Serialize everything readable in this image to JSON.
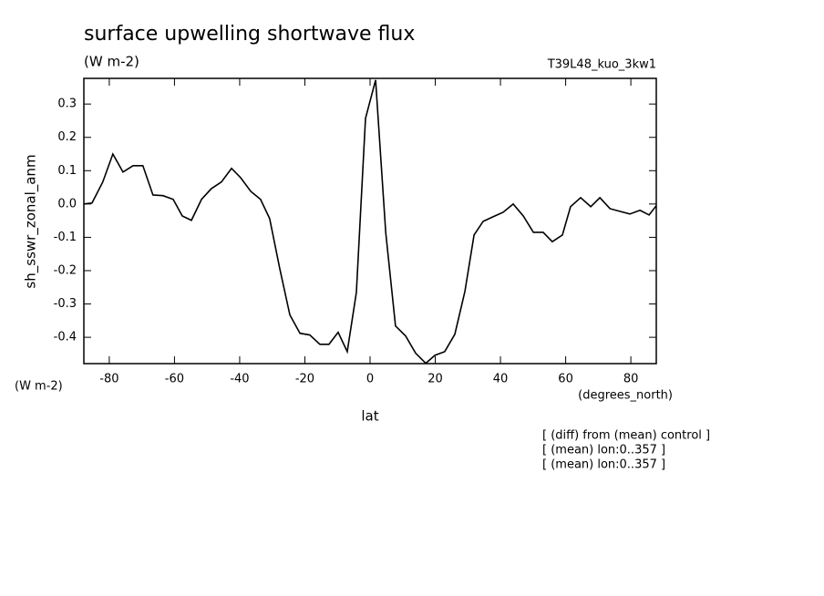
{
  "chart_data": {
    "type": "line",
    "title": "surface upwelling shortwave flux",
    "subtitle": "(W m-2)",
    "run_label": "T39L48_kuo_3kw1",
    "y_label": "sh_sswr_zonal_anm",
    "y_units": "(W m-2)",
    "x_units": "(degrees_north)",
    "x_label": "lat",
    "notes": [
      "[ (diff) from (mean) control ]",
      "[ (mean) lon:0..357 ]",
      "[ (mean) lon:0..357 ]"
    ],
    "color": "#000000",
    "x": [
      -87.8,
      -85.3,
      -82.0,
      -78.9,
      -75.8,
      -72.7,
      -69.7,
      -66.6,
      -63.5,
      -60.4,
      -57.6,
      -54.8,
      -51.7,
      -48.7,
      -45.6,
      -42.5,
      -39.7,
      -36.6,
      -33.6,
      -30.8,
      -27.7,
      -24.6,
      -21.5,
      -18.5,
      -15.4,
      -12.6,
      -9.8,
      -7.0,
      -4.2,
      -1.4,
      1.7,
      4.8,
      7.8,
      10.9,
      14.0,
      17.1,
      19.9,
      22.9,
      26.0,
      29.1,
      31.9,
      34.7,
      37.8,
      40.8,
      43.9,
      47.0,
      50.1,
      53.1,
      55.9,
      59.0,
      61.5,
      64.6,
      67.7,
      70.5,
      73.6,
      76.6,
      79.7,
      82.8,
      85.6,
      87.8
    ],
    "values": [
      0.0,
      0.003,
      0.066,
      0.15,
      0.096,
      0.115,
      0.115,
      0.027,
      0.025,
      0.014,
      -0.036,
      -0.049,
      0.014,
      0.046,
      0.066,
      0.107,
      0.079,
      0.038,
      0.014,
      -0.044,
      -0.194,
      -0.333,
      -0.388,
      -0.393,
      -0.421,
      -0.421,
      -0.385,
      -0.443,
      -0.265,
      0.257,
      0.372,
      -0.085,
      -0.366,
      -0.396,
      -0.448,
      -0.478,
      -0.454,
      -0.443,
      -0.391,
      -0.262,
      -0.093,
      -0.052,
      -0.038,
      -0.025,
      0.0,
      -0.036,
      -0.085,
      -0.085,
      -0.113,
      -0.093,
      -0.008,
      0.019,
      -0.008,
      0.019,
      -0.014,
      -0.022,
      -0.03,
      -0.019,
      -0.033,
      -0.005
    ],
    "xlim": [
      -87.8,
      87.8
    ],
    "ylim": [
      -0.479,
      0.377
    ],
    "xticks": [
      -80,
      -60,
      -40,
      -20,
      0,
      20,
      40,
      60,
      80
    ],
    "yticks": [
      0.3,
      0.2,
      0.1,
      {
        "value": 0,
        "label": "0.0"
      },
      -0.1,
      -0.2,
      -0.3,
      -0.4
    ]
  }
}
